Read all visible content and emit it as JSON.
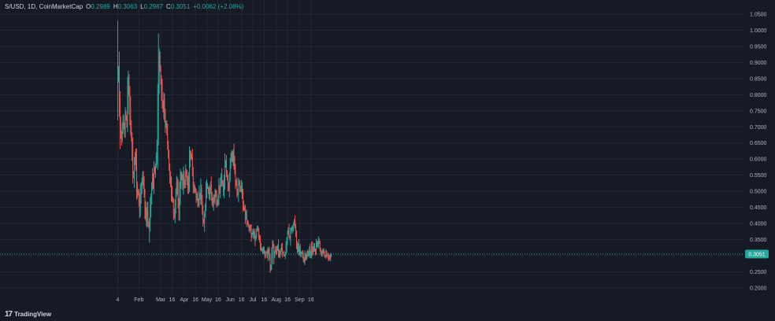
{
  "header": {
    "pair": "S/USD, 1D, CoinMarketCap",
    "open_label": "O",
    "open": "0.2989",
    "high_label": "H",
    "high": "0.3063",
    "low_label": "L",
    "low": "0.2987",
    "close_label": "C",
    "close": "0.3051",
    "change": "+0.0062 (+2.08%)"
  },
  "watermark": {
    "logo": "17",
    "text": "TradingView"
  },
  "colors": {
    "background": "#161a25",
    "grid": "#232733",
    "up": "#26a69a",
    "down": "#ef5350",
    "axis_text": "#b2b5be",
    "price_line": "#26a69a"
  },
  "chart_data": {
    "type": "candlestick",
    "title": "",
    "xlabel": "",
    "ylabel": "",
    "ylim": [
      0.18,
      1.06
    ],
    "grid": true,
    "current_price": "0.3051",
    "x_ticks": [
      "4",
      "Feb",
      "Mar",
      "16",
      "Apr",
      "16",
      "May",
      "16",
      "Jun",
      "16",
      "Jul",
      "16",
      "Aug",
      "16",
      "Sep",
      "16"
    ],
    "y_ticks": [
      "1.0500",
      "1.0000",
      "0.9500",
      "0.9000",
      "0.8500",
      "0.8000",
      "0.7500",
      "0.7000",
      "0.6500",
      "0.6000",
      "0.5500",
      "0.5000",
      "0.4500",
      "0.4000",
      "0.3500",
      "0.3000",
      "0.2500",
      "0.2000"
    ],
    "x_start": "2024-01-04",
    "closes": [
      0.85,
      0.88,
      0.79,
      0.71,
      0.68,
      0.66,
      0.69,
      0.72,
      0.7,
      0.68,
      0.74,
      0.73,
      0.71,
      0.78,
      0.84,
      0.81,
      0.76,
      0.7,
      0.67,
      0.63,
      0.56,
      0.55,
      0.59,
      0.61,
      0.58,
      0.52,
      0.49,
      0.5,
      0.47,
      0.44,
      0.48,
      0.51,
      0.53,
      0.55,
      0.52,
      0.49,
      0.45,
      0.43,
      0.41,
      0.44,
      0.4,
      0.39,
      0.41,
      0.45,
      0.48,
      0.52,
      0.55,
      0.53,
      0.57,
      0.56,
      0.58,
      0.6,
      0.65,
      0.75,
      0.86,
      0.92,
      0.88,
      0.84,
      0.81,
      0.77,
      0.75,
      0.79,
      0.74,
      0.7,
      0.71,
      0.68,
      0.64,
      0.61,
      0.58,
      0.55,
      0.53,
      0.5,
      0.48,
      0.47,
      0.44,
      0.42,
      0.46,
      0.5,
      0.53,
      0.51,
      0.47,
      0.44,
      0.49,
      0.53,
      0.55,
      0.54,
      0.52,
      0.55,
      0.53,
      0.52,
      0.56,
      0.55,
      0.53,
      0.51,
      0.54,
      0.59,
      0.62,
      0.61,
      0.6,
      0.56,
      0.52,
      0.5,
      0.51,
      0.5,
      0.48,
      0.49,
      0.47,
      0.46,
      0.49,
      0.48,
      0.51,
      0.47,
      0.44,
      0.41,
      0.4,
      0.43,
      0.45,
      0.49,
      0.52,
      0.51,
      0.5,
      0.48,
      0.5,
      0.52,
      0.49,
      0.47,
      0.46,
      0.48,
      0.47,
      0.5,
      0.49,
      0.47,
      0.46,
      0.48,
      0.51,
      0.5,
      0.53,
      0.55,
      0.53,
      0.52,
      0.5,
      0.54,
      0.58,
      0.59,
      0.56,
      0.54,
      0.52,
      0.51,
      0.54,
      0.58,
      0.6,
      0.62,
      0.6,
      0.62,
      0.59,
      0.56,
      0.52,
      0.53,
      0.5,
      0.49,
      0.52,
      0.53,
      0.51,
      0.5,
      0.52,
      0.49,
      0.46,
      0.45,
      0.44,
      0.42,
      0.43,
      0.41,
      0.4,
      0.39,
      0.38,
      0.39,
      0.38,
      0.36,
      0.37,
      0.38,
      0.36,
      0.37,
      0.35,
      0.36,
      0.38,
      0.39,
      0.38,
      0.36,
      0.35,
      0.33,
      0.32,
      0.32,
      0.31,
      0.32,
      0.31,
      0.3,
      0.31,
      0.31,
      0.3,
      0.32,
      0.31,
      0.29,
      0.26,
      0.27,
      0.3,
      0.34,
      0.33,
      0.3,
      0.31,
      0.32,
      0.31,
      0.32,
      0.33,
      0.31,
      0.3,
      0.31,
      0.32,
      0.33,
      0.31,
      0.31,
      0.3,
      0.3,
      0.31,
      0.33,
      0.35,
      0.37,
      0.38,
      0.36,
      0.35,
      0.37,
      0.38,
      0.39,
      0.38,
      0.4,
      0.41,
      0.39,
      0.37,
      0.34,
      0.32,
      0.33,
      0.31,
      0.32,
      0.3,
      0.31,
      0.31,
      0.3,
      0.29,
      0.28,
      0.3,
      0.29,
      0.3,
      0.31,
      0.3,
      0.31,
      0.32,
      0.3,
      0.31,
      0.33,
      0.31,
      0.32,
      0.33,
      0.32,
      0.31,
      0.33,
      0.34,
      0.33,
      0.35,
      0.34,
      0.32,
      0.31,
      0.3,
      0.31,
      0.32,
      0.31,
      0.3,
      0.3,
      0.31,
      0.3,
      0.3,
      0.29,
      0.3,
      0.29,
      0.3,
      0.3051
    ]
  }
}
